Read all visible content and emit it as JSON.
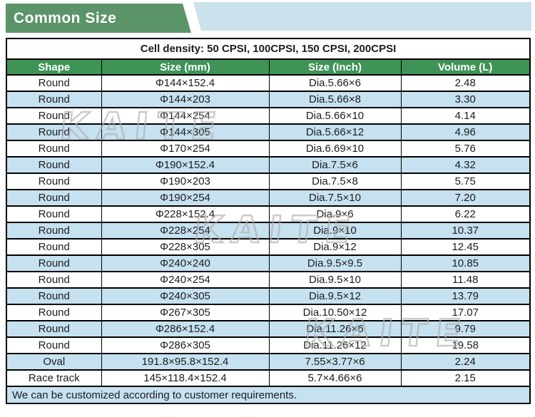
{
  "banner": {
    "title": "Common Size"
  },
  "watermark": {
    "text": "KAITE"
  },
  "colors": {
    "banner_green": "#5b9468",
    "banner_blue": "#c9e2ec",
    "header_green": "#3f9356",
    "light_blue": "#c6e1ef",
    "border": "#000000",
    "text": "#1d1d1d"
  },
  "table": {
    "density_note": "Cell density: 50 CPSI, 100CPSI, 150 CPSI, 200CPSI",
    "columns": [
      "Shape",
      "Size (mm)",
      "Size (Inch)",
      "Volume (L)"
    ],
    "rows": [
      [
        "Round",
        "Φ144×152.4",
        "Dia.5.66×6",
        "2.48"
      ],
      [
        "Round",
        "Φ144×203",
        "Dia.5.66×8",
        "3.30"
      ],
      [
        "Round",
        "Φ144×254",
        "Dia.5.66×10",
        "4.14"
      ],
      [
        "Round",
        "Φ144×305",
        "Dia.5.66×12",
        "4.96"
      ],
      [
        "Round",
        "Φ170×254",
        "Dia.6.69×10",
        "5.76"
      ],
      [
        "Round",
        "Φ190×152.4",
        "Dia.7.5×6",
        "4.32"
      ],
      [
        "Round",
        "Φ190×203",
        "Dia.7.5×8",
        "5.75"
      ],
      [
        "Round",
        "Φ190×254",
        "Dia.7.5×10",
        "7.20"
      ],
      [
        "Round",
        "Φ228×152.4",
        "Dia.9×6",
        "6.22"
      ],
      [
        "Round",
        "Φ228×254",
        "Dia.9×10",
        "10.37"
      ],
      [
        "Round",
        "Φ228×305",
        "Dia.9×12",
        "12.45"
      ],
      [
        "Round",
        "Φ240×240",
        "Dia.9.5×9.5",
        "10.85"
      ],
      [
        "Round",
        "Φ240×254",
        "Dia.9.5×10",
        "11.48"
      ],
      [
        "Round",
        "Φ240×305",
        "Dia.9.5×12",
        "13.79"
      ],
      [
        "Round",
        "Φ267×305",
        "Dia.10.50×12",
        "17.07"
      ],
      [
        "Round",
        "Φ286×152.4",
        "Dia.11.26×6",
        "9.79"
      ],
      [
        "Round",
        "Φ286×305",
        "Dia.11.26×12",
        "19.58"
      ],
      [
        "Oval",
        "191.8×95.8×152.4",
        "7.55×3.77×6",
        "2.24"
      ],
      [
        "Race track",
        "145×118.4×152.4",
        "5.7×4.66×6",
        "2.15"
      ]
    ],
    "footer_note": "We can be customized according to customer requirements."
  }
}
